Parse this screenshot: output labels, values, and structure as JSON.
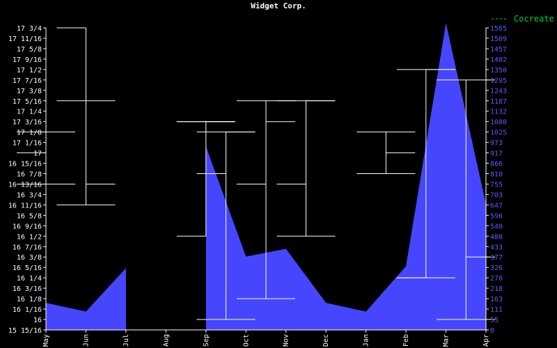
{
  "chart_data": {
    "type": "area",
    "title": "Widget Corp.",
    "colors": {
      "background": "#000000",
      "area": "#4646ff",
      "axis": "#ffffff",
      "right_ticks": "#5a5aff",
      "legend": "#00cc33",
      "bars": "#ffffff"
    },
    "categories": [
      "May",
      "Jun",
      "Jul",
      "Aug",
      "Sep",
      "Oct",
      "Nov",
      "Dec",
      "Jan",
      "Feb",
      "Mar",
      "Apr"
    ],
    "left_ticks": [
      "15 15/16",
      "16",
      "16 1/16",
      "16 1/8",
      "16 3/16",
      "16 1/4",
      "16 5/16",
      "16 3/8",
      "16 7/16",
      "16 1/2",
      "16 9/16",
      "16 5/8",
      "16 11/16",
      "16 3/4",
      "16 13/16",
      "16 7/8",
      "16 15/16",
      "17",
      "17 1/16",
      "17 1/8",
      "17 3/16",
      "17 1/4",
      "17 5/16",
      "17 3/8",
      "17 7/16",
      "17 1/2",
      "17 9/16",
      "17 5/8",
      "17 11/16",
      "17 3/4"
    ],
    "right_ticks": [
      "0",
      "55",
      "111",
      "163",
      "218",
      "270",
      "326",
      "377",
      "433",
      "488",
      "540",
      "596",
      "647",
      "703",
      "755",
      "810",
      "866",
      "917",
      "973",
      "1025",
      "1080",
      "1132",
      "1187",
      "1243",
      "1295",
      "1350",
      "1402",
      "1457",
      "1509",
      "1565"
    ],
    "right_ylim": [
      0,
      1565
    ],
    "left_ylim": [
      15.9375,
      17.75
    ],
    "series": [
      {
        "type": "area",
        "x": [
          0,
          1,
          2,
          2,
          3,
          4,
          4,
          5,
          6,
          7,
          8,
          9,
          10,
          11
        ],
        "values": [
          140,
          95,
          320,
          0,
          0,
          0,
          950,
          380,
          420,
          140,
          95,
          330,
          1590,
          650
        ]
      },
      {
        "type": "ohlc",
        "name": "Cocreate",
        "points": [
          {
            "x": 0,
            "open": 17.0,
            "high": 17.125,
            "low": 16.8125,
            "close": 16.8125
          },
          {
            "x": 1,
            "open": 17.75,
            "high": 17.3125,
            "low": 16.6875,
            "close": 16.8125
          },
          {
            "x": 4,
            "open": 16.5,
            "high": 17.1875,
            "low": 17.1875,
            "close": 17.1875
          },
          {
            "x": 4.5,
            "open": 16.875,
            "high": 17.125,
            "low": 16.0,
            "close": 17.125
          },
          {
            "x": 5.5,
            "open": 16.8125,
            "high": 17.3125,
            "low": 16.125,
            "close": 17.1875
          },
          {
            "x": 6.5,
            "open": 16.8125,
            "high": 17.3125,
            "low": 16.5,
            "close": 17.3125
          },
          {
            "x": 8.5,
            "open": 16.875,
            "high": 17.125,
            "low": 16.875,
            "close": 17.0
          },
          {
            "x": 9.5,
            "open": 16.25,
            "high": 17.5,
            "low": 16.25,
            "close": 17.5
          },
          {
            "x": 10.5,
            "open": 16.0,
            "high": 17.4375,
            "low": 16.0,
            "close": 16.375
          }
        ]
      }
    ],
    "legend": {
      "label": "Cocreate",
      "placement": "top-right"
    },
    "grid": false
  }
}
